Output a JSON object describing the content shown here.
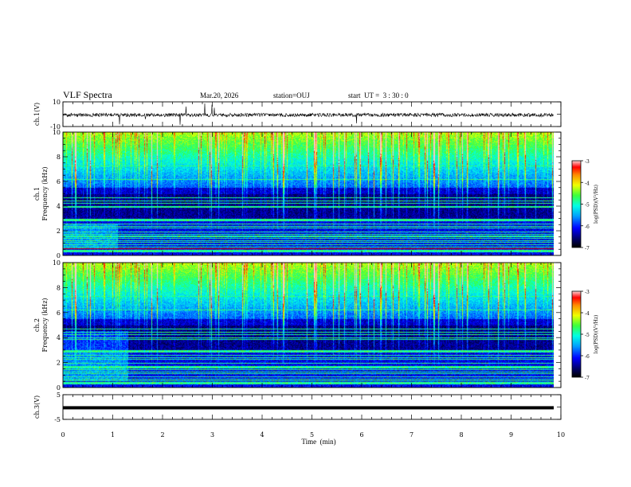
{
  "chart_data": {
    "type": "heatmap",
    "header": {
      "title": "VLF Spectra",
      "date": "Mar.20, 2026",
      "station": "station=OUJ",
      "start": "start  UT =  3 : 30 : 0"
    },
    "xaxis": {
      "label": "Time  (min)",
      "range": [
        0,
        10
      ],
      "ticks": [
        "0",
        "1",
        "2",
        "3",
        "4",
        "5",
        "6",
        "7",
        "8",
        "9",
        "10"
      ],
      "data_end_min": 9.85
    },
    "panels": [
      {
        "id": "ch1-waveform",
        "ylabel": "ch.1(V)",
        "ylim": [
          -10,
          10
        ],
        "ticks": [
          "10",
          "-10"
        ],
        "type": "line"
      },
      {
        "id": "ch1-spectrogram",
        "ylabel_line1": "ch.1",
        "ylabel_line2": "Frequency (kHz)",
        "ylim": [
          0,
          10
        ],
        "ticks": [
          "0",
          "2",
          "4",
          "6",
          "8",
          "10"
        ],
        "type": "heatmap",
        "colorbar": {
          "label": "log(PSD)(V²/Hz)",
          "range": [
            -7,
            -3
          ],
          "ticks": [
            "-3",
            "-4",
            "-5",
            "-6",
            "-7"
          ]
        }
      },
      {
        "id": "ch2-spectrogram",
        "ylabel_line1": "ch.2",
        "ylabel_line2": "Frequency (kHz)",
        "ylim": [
          0,
          10
        ],
        "ticks": [
          "0",
          "2",
          "4",
          "6",
          "8",
          "10"
        ],
        "type": "heatmap",
        "colorbar": {
          "label": "log(PSD)(V²/Hz)",
          "range": [
            -7,
            -3
          ],
          "ticks": [
            "-3",
            "-4",
            "-5",
            "-6",
            "-7"
          ]
        }
      },
      {
        "id": "ch3-waveform",
        "ylabel": "ch.3(V)",
        "ylim": [
          -5,
          5
        ],
        "ticks": [
          "5",
          "-5"
        ],
        "type": "line",
        "level_v": -0.3
      }
    ]
  }
}
